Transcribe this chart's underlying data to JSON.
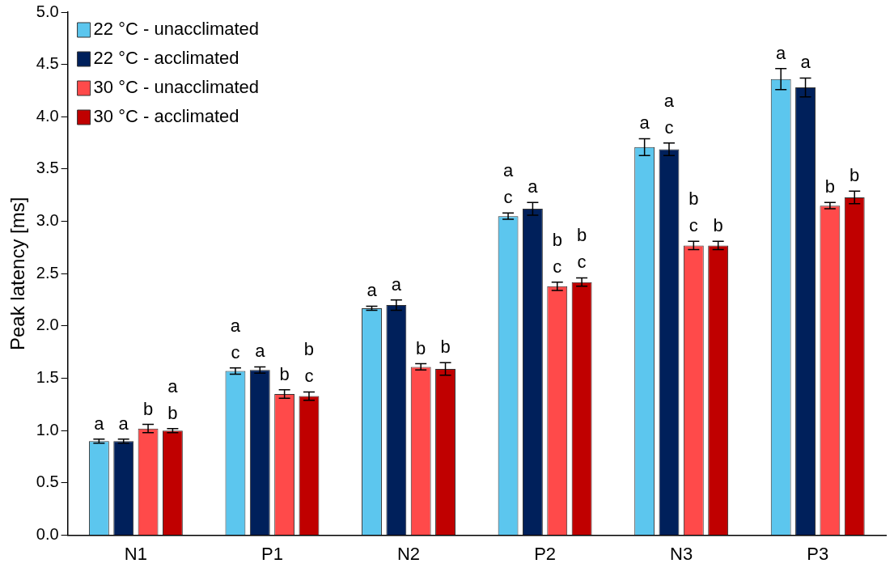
{
  "chart_data": {
    "type": "bar",
    "ylabel": "Peak latency [ms]",
    "categories": [
      "N1",
      "P1",
      "N2",
      "P2",
      "N3",
      "P3"
    ],
    "series": [
      {
        "name": "22 °C - unacclimated",
        "color": "#5cc6ee",
        "values": [
          0.9,
          1.57,
          2.17,
          3.05,
          3.71,
          4.36
        ],
        "errors": [
          0.02,
          0.03,
          0.02,
          0.03,
          0.08,
          0.1
        ],
        "value_labels": [
          "a",
          "a\nc",
          "a",
          "a\nc",
          "a",
          "a"
        ]
      },
      {
        "name": "22 °C - acclimated",
        "color": "#00205b",
        "values": [
          0.9,
          1.58,
          2.2,
          3.12,
          3.69,
          4.28
        ],
        "errors": [
          0.02,
          0.03,
          0.05,
          0.06,
          0.06,
          0.09
        ],
        "value_labels": [
          "a",
          "a",
          "a",
          "a",
          "a\nc",
          "a"
        ]
      },
      {
        "name": "30 °C - unacclimated",
        "color": "#ff4a4a",
        "values": [
          1.02,
          1.35,
          1.61,
          2.38,
          2.77,
          3.15
        ],
        "errors": [
          0.04,
          0.04,
          0.03,
          0.04,
          0.04,
          0.03
        ],
        "value_labels": [
          "b",
          "b",
          "b",
          "b\nc",
          "b\nc",
          "b"
        ]
      },
      {
        "name": "30 °C - acclimated",
        "color": "#c00000",
        "values": [
          1.0,
          1.33,
          1.59,
          2.42,
          2.77,
          3.23
        ],
        "errors": [
          0.02,
          0.04,
          0.06,
          0.04,
          0.04,
          0.06
        ],
        "value_labels": [
          "a\nb",
          "b\nc",
          "b",
          "b\nc",
          "b",
          "b"
        ]
      }
    ],
    "ylim": [
      0,
      5
    ],
    "yticks": [
      {
        "value": 0,
        "label": "0.0"
      },
      0.5,
      {
        "value": 1,
        "label": "1.0"
      },
      1.5,
      {
        "value": 2,
        "label": "2.0"
      },
      2.5,
      {
        "value": 3,
        "label": "3.0"
      },
      3.5,
      {
        "value": 4,
        "label": "4.0"
      },
      4.5,
      {
        "value": 5,
        "label": "5.0"
      }
    ],
    "grid": false,
    "legend": "top left"
  }
}
